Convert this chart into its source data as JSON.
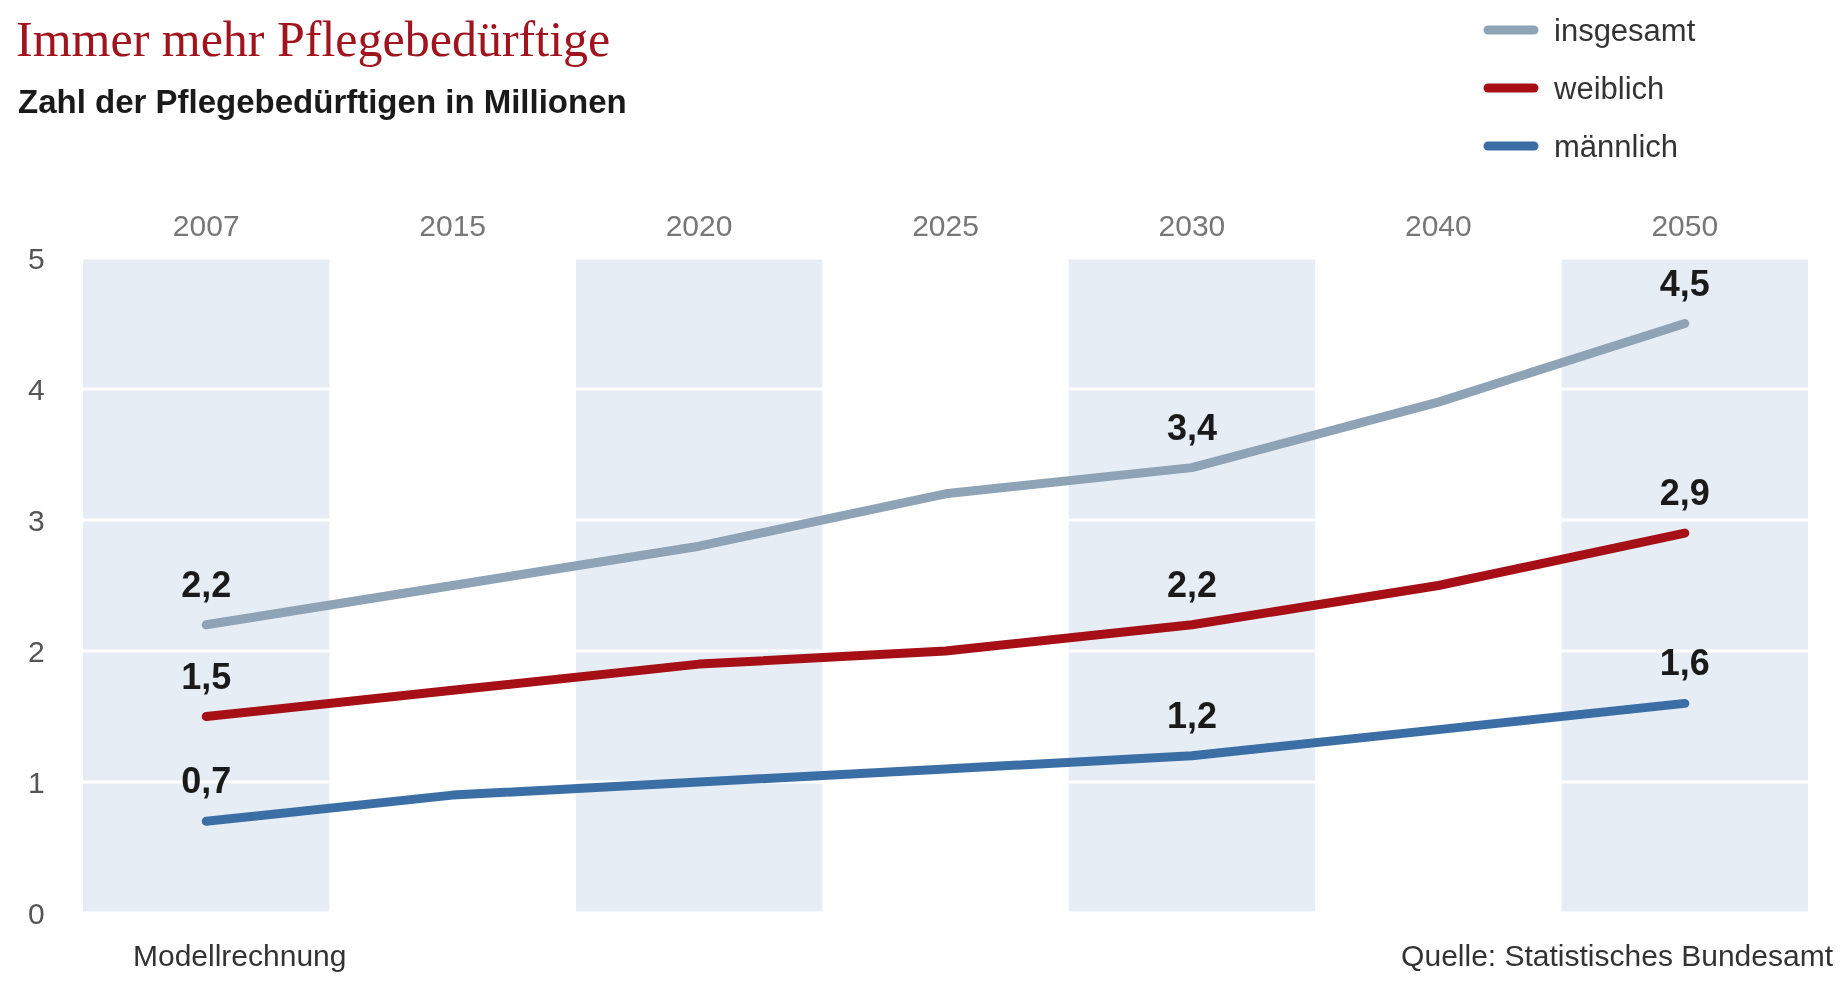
{
  "chart_data": {
    "type": "line",
    "title": "Immer mehr Pflegebedürftige",
    "subtitle": "Zahl der Pflegebedürftigen in Millionen",
    "categories": [
      "2007",
      "2015",
      "2020",
      "2025",
      "2030",
      "2040",
      "2050"
    ],
    "series": [
      {
        "name": "insgesamt",
        "color": "#8ea3b5",
        "values": [
          2.2,
          2.5,
          2.8,
          3.2,
          3.4,
          3.9,
          4.5
        ],
        "value_labels": [
          "2,2",
          null,
          null,
          null,
          "3,4",
          null,
          "4,5"
        ]
      },
      {
        "name": "weiblich",
        "color": "#a50f15",
        "values": [
          1.5,
          1.7,
          1.9,
          2.0,
          2.2,
          2.5,
          2.9
        ],
        "value_labels": [
          "1,5",
          null,
          null,
          null,
          "2,2",
          null,
          "2,9"
        ]
      },
      {
        "name": "männlich",
        "color": "#3a6ea5",
        "values": [
          0.7,
          0.9,
          1.0,
          1.1,
          1.2,
          1.4,
          1.6
        ],
        "value_labels": [
          "0,7",
          null,
          null,
          null,
          "1,2",
          null,
          "1,6"
        ]
      }
    ],
    "ylim": [
      0,
      5
    ],
    "yticks": [
      0,
      1,
      2,
      3,
      4,
      5
    ],
    "grid": "y",
    "legend": "top right",
    "line_style": "solid",
    "marker": "none",
    "bands": [
      {
        "axis": "x",
        "from": "2007",
        "to": "2007",
        "color": "#e6edf5"
      },
      {
        "axis": "x",
        "from": "2020",
        "to": "2020",
        "color": "#e6edf5"
      },
      {
        "axis": "x",
        "from": "2030",
        "to": "2030",
        "color": "#e6edf5"
      },
      {
        "axis": "x",
        "from": "2050",
        "to": "2050",
        "color": "#e6edf5"
      }
    ],
    "annotations": [
      "Modellrechnung",
      "Quelle: Statistisches Bundesamt"
    ]
  }
}
